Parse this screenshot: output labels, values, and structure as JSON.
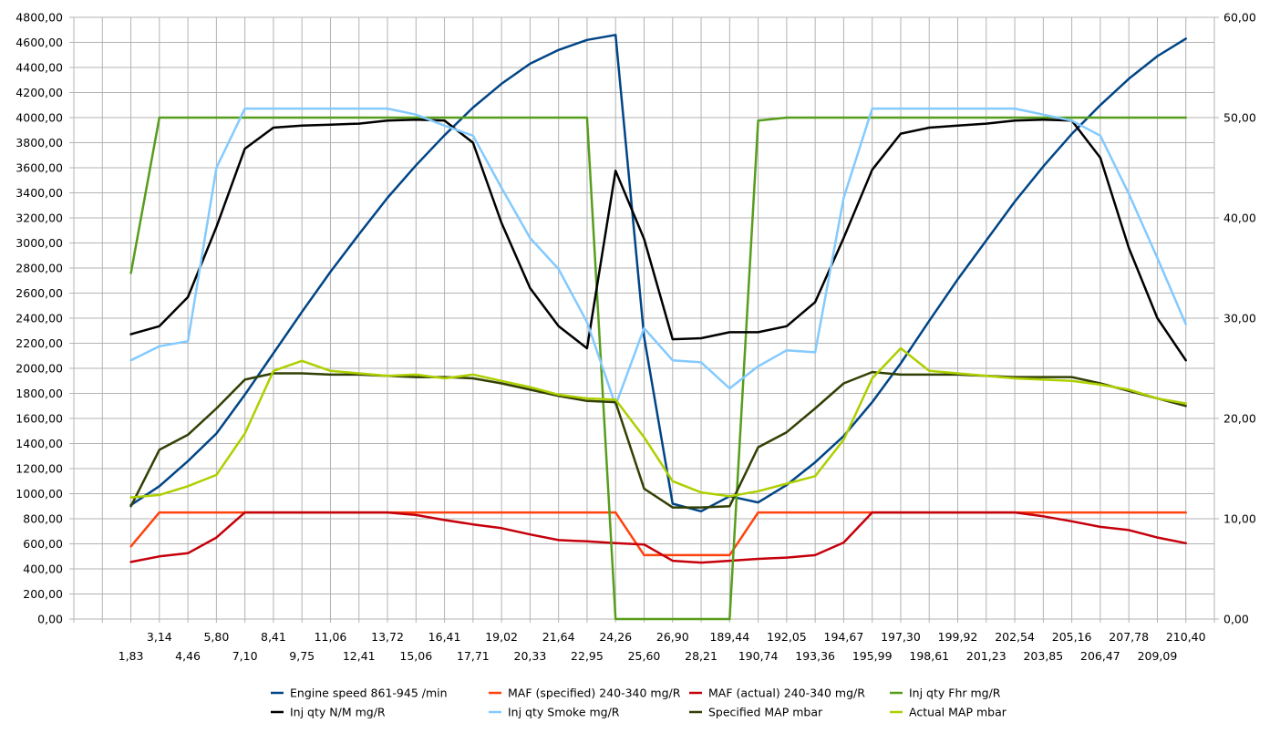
{
  "chart_data": {
    "type": "line",
    "title": "",
    "xlabel": "",
    "ylabel": "",
    "grid": true,
    "legend_position": "bottom",
    "x_labels": [
      "1,83",
      "3,14",
      "4,46",
      "5,80",
      "7,10",
      "8,41",
      "9,75",
      "11,06",
      "12,41",
      "13,72",
      "15,06",
      "16,41",
      "17,71",
      "19,02",
      "20,33",
      "21,64",
      "22,95",
      "24,26",
      "25,60",
      "26,90",
      "28,21",
      "189,44",
      "190,74",
      "192,05",
      "193,36",
      "194,67",
      "195,99",
      "197,30",
      "198,61",
      "199,92",
      "201,23",
      "202,54",
      "203,85",
      "205,16",
      "206,47",
      "207,78",
      "209,09",
      "210,40"
    ],
    "x_axis_padding_slots": 2,
    "y_left": {
      "min": 0,
      "max": 4800,
      "step": 200,
      "tick_labels": [
        "0,00",
        "200,00",
        "400,00",
        "600,00",
        "800,00",
        "1000,00",
        "1200,00",
        "1400,00",
        "1600,00",
        "1800,00",
        "2000,00",
        "2200,00",
        "2400,00",
        "2600,00",
        "2800,00",
        "3000,00",
        "3200,00",
        "3400,00",
        "3600,00",
        "3800,00",
        "4000,00",
        "4200,00",
        "4400,00",
        "4600,00",
        "4800,00"
      ]
    },
    "y_right": {
      "min": 0,
      "max": 60,
      "step": 10,
      "tick_labels": [
        "0,00",
        "10,00",
        "20,00",
        "30,00",
        "40,00",
        "50,00",
        "60,00"
      ]
    },
    "series": [
      {
        "name": "Engine speed 861-945  /min",
        "color": "#004586",
        "axis": "left",
        "values": [
          910,
          1060,
          1260,
          1480,
          1790,
          2120,
          2450,
          2770,
          3070,
          3360,
          3620,
          3860,
          4080,
          4270,
          4430,
          4540,
          4620,
          4660,
          2250,
          920,
          860,
          980,
          930,
          1070,
          1250,
          1460,
          1730,
          2040,
          2380,
          2710,
          3020,
          3330,
          3610,
          3870,
          4100,
          4310,
          4490,
          4630
        ]
      },
      {
        "name": "MAF (specified) 240-340  mg/R",
        "color": "#ff420e",
        "axis": "left",
        "values": [
          580,
          850,
          850,
          850,
          850,
          850,
          850,
          850,
          850,
          850,
          850,
          850,
          850,
          850,
          850,
          850,
          850,
          850,
          510,
          510,
          510,
          510,
          850,
          850,
          850,
          850,
          850,
          850,
          850,
          850,
          850,
          850,
          850,
          850,
          850,
          850,
          850,
          850
        ]
      },
      {
        "name": "MAF (actual) 240-340  mg/R",
        "color": "#c5000b",
        "axis": "left",
        "values": [
          455,
          500,
          525,
          650,
          850,
          850,
          850,
          850,
          850,
          850,
          830,
          790,
          755,
          725,
          675,
          630,
          620,
          605,
          595,
          465,
          450,
          465,
          480,
          490,
          510,
          610,
          850,
          850,
          850,
          850,
          850,
          850,
          820,
          780,
          735,
          710,
          650,
          605
        ]
      },
      {
        "name": "Inj qty Fhr  mg/R",
        "color": "#579d1c",
        "axis": "right",
        "values": [
          34.5,
          50,
          50,
          50,
          50,
          50,
          50,
          50,
          50,
          50,
          50,
          50,
          50,
          50,
          50,
          50,
          50,
          0,
          0,
          0,
          0,
          0,
          49.7,
          50,
          50,
          50,
          50,
          50,
          50,
          50,
          50,
          50,
          50,
          50,
          50,
          50,
          50,
          50
        ]
      },
      {
        "name": "Inj qty N/M  mg/R",
        "color": "#000000",
        "axis": "right",
        "values": [
          28.4,
          29.2,
          32.1,
          39.1,
          46.9,
          49.0,
          49.2,
          49.3,
          49.4,
          49.7,
          49.8,
          49.7,
          47.5,
          39.5,
          33.0,
          29.2,
          27.0,
          44.7,
          37.9,
          27.9,
          28.0,
          28.6,
          28.6,
          29.2,
          31.6,
          38.0,
          44.8,
          48.4,
          49.0,
          49.2,
          49.4,
          49.7,
          49.8,
          49.7,
          46.0,
          37.0,
          30.0,
          25.8
        ]
      },
      {
        "name": "Inj qty Smoke  mg/R",
        "color": "#83caff",
        "axis": "right",
        "values": [
          25.8,
          27.2,
          27.7,
          45.0,
          50.9,
          50.9,
          50.9,
          50.9,
          50.9,
          50.9,
          50.3,
          49.2,
          48.2,
          43.0,
          38.0,
          34.9,
          29.6,
          21.3,
          29.0,
          25.8,
          25.6,
          23.0,
          25.2,
          26.8,
          26.6,
          42.0,
          50.9,
          50.9,
          50.9,
          50.9,
          50.9,
          50.9,
          50.3,
          49.7,
          48.2,
          42.4,
          36.0,
          29.4
        ]
      },
      {
        "name": "Specified MAP  mbar",
        "color": "#314004",
        "axis": "left",
        "values": [
          900,
          1350,
          1470,
          1680,
          1910,
          1960,
          1960,
          1950,
          1950,
          1940,
          1930,
          1930,
          1920,
          1880,
          1830,
          1780,
          1740,
          1730,
          1040,
          890,
          890,
          900,
          1370,
          1490,
          1680,
          1880,
          1970,
          1950,
          1950,
          1950,
          1940,
          1930,
          1930,
          1930,
          1880,
          1820,
          1760,
          1700
        ]
      },
      {
        "name": "Actual MAP  mbar",
        "color": "#aecf00",
        "axis": "left",
        "values": [
          970,
          990,
          1060,
          1150,
          1480,
          1980,
          2060,
          1980,
          1960,
          1940,
          1950,
          1920,
          1950,
          1900,
          1850,
          1790,
          1760,
          1750,
          1450,
          1100,
          1010,
          980,
          1020,
          1080,
          1140,
          1430,
          1920,
          2160,
          1980,
          1960,
          1940,
          1920,
          1910,
          1900,
          1870,
          1830,
          1760,
          1720
        ]
      }
    ]
  }
}
